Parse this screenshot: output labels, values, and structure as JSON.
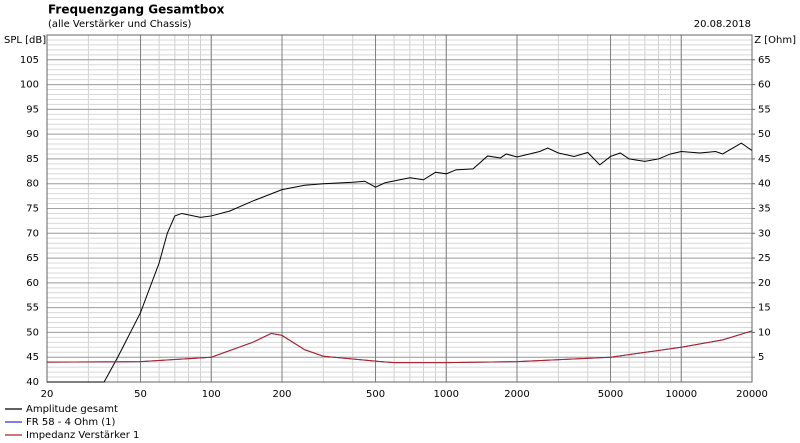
{
  "chart_data": {
    "type": "line",
    "title": "Frequenzgang Gesamtbox",
    "subtitle": "(alle Verstärker und Chassis)",
    "date": "20.08.2018",
    "ylabel": "SPL [dB]",
    "y2label": "Z [Ohm]",
    "xscale": "log",
    "grid": true,
    "legend": "bottom-left",
    "xlim": [
      20,
      20000
    ],
    "xticks": [
      20,
      50,
      100,
      200,
      500,
      1000,
      2000,
      5000,
      10000,
      20000
    ],
    "ylim": [
      40,
      110
    ],
    "yticks": [
      40,
      45,
      50,
      55,
      60,
      65,
      70,
      75,
      80,
      85,
      90,
      95,
      100,
      105
    ],
    "y2lim": [
      0,
      70
    ],
    "y2ticks": [
      5,
      10,
      15,
      20,
      25,
      30,
      35,
      40,
      45,
      50,
      55,
      60,
      65
    ],
    "series": [
      {
        "name": "Amplitude gesamt",
        "color": "#000000",
        "x": [
          20,
          35,
          40,
          50,
          60,
          65,
          70,
          75,
          90,
          100,
          120,
          150,
          200,
          250,
          300,
          400,
          450,
          500,
          550,
          700,
          800,
          900,
          1000,
          1100,
          1300,
          1500,
          1700,
          1800,
          2000,
          2500,
          2700,
          3000,
          3500,
          4000,
          4500,
          5000,
          5500,
          6000,
          7000,
          8000,
          9000,
          10000,
          12000,
          14000,
          15000,
          17000,
          18000,
          20000
        ],
        "values": [
          40,
          40,
          45,
          54,
          64,
          70,
          73.5,
          74,
          73.2,
          73.5,
          74.5,
          76.5,
          78.8,
          79.7,
          80,
          80.3,
          80.5,
          79.3,
          80.2,
          81.2,
          80.8,
          82.3,
          82,
          82.8,
          83,
          85.6,
          85.2,
          86,
          85.4,
          86.5,
          87.2,
          86.2,
          85.5,
          86.3,
          83.8,
          85.5,
          86.2,
          85,
          84.5,
          85,
          86,
          86.5,
          86.2,
          86.5,
          86,
          87.5,
          88.2,
          86.7
        ]
      },
      {
        "name": "FR 58 - 4 Ohm (1)",
        "color": "#3333cc",
        "axis": "y2",
        "x": [
          20,
          50,
          100,
          150,
          180,
          200,
          250,
          300,
          500,
          600,
          1000,
          2000,
          5000,
          10000,
          15000,
          20000
        ],
        "values": [
          4,
          4.1,
          5,
          8,
          9.8,
          9.4,
          6.5,
          5.2,
          4.2,
          3.9,
          3.9,
          4.1,
          5,
          7,
          8.5,
          10.3
        ]
      },
      {
        "name": "Impedanz Verstärker 1",
        "color": "#b22222",
        "axis": "y2",
        "x": [
          20,
          50,
          100,
          150,
          180,
          200,
          250,
          300,
          500,
          600,
          1000,
          2000,
          5000,
          10000,
          15000,
          20000
        ],
        "values": [
          4,
          4.1,
          5,
          8,
          9.8,
          9.4,
          6.5,
          5.2,
          4.2,
          3.9,
          3.9,
          4.1,
          5,
          7,
          8.5,
          10.3
        ]
      }
    ]
  }
}
